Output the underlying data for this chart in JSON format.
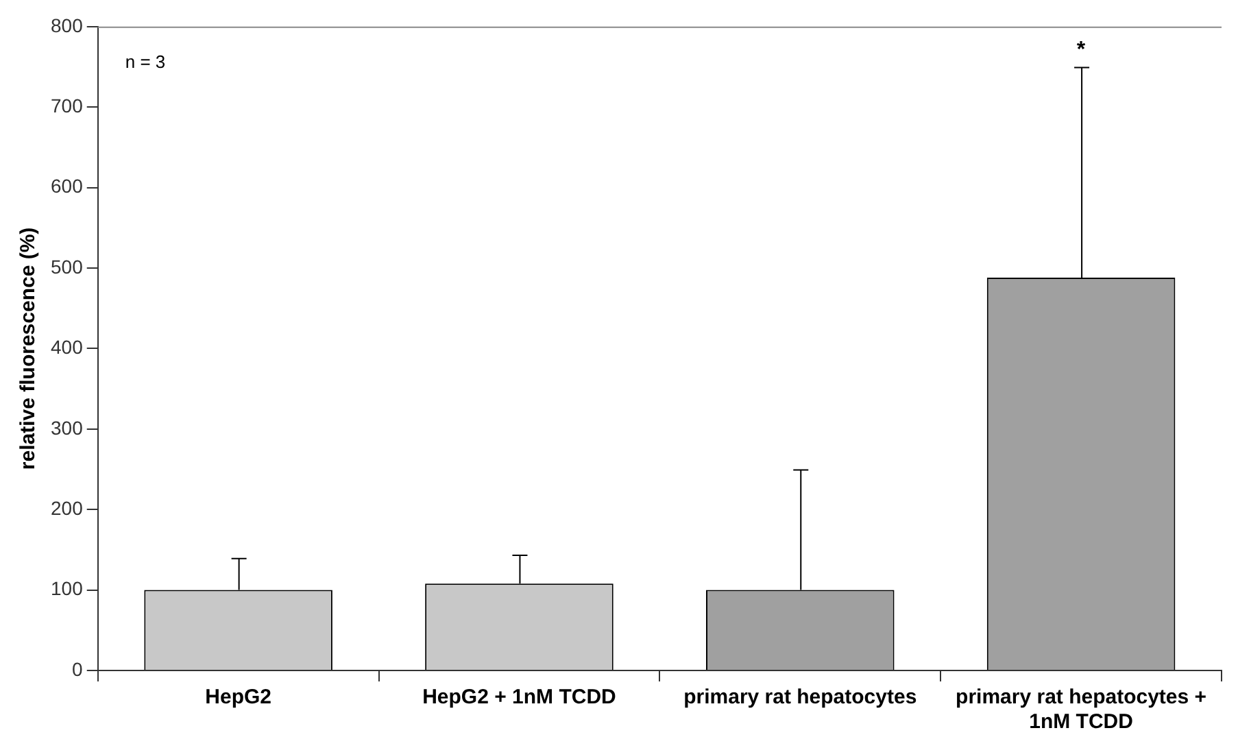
{
  "chart_data": {
    "type": "bar",
    "ylabel": "relative fluorescence (%)",
    "categories": [
      "HepG2",
      "HepG2 + 1nM TCDD",
      "primary rat hepatocytes",
      "primary rat hepatocytes + 1nM TCDD"
    ],
    "values": [
      100,
      108,
      100,
      488
    ],
    "errors": [
      40,
      36,
      150,
      262
    ],
    "colors": [
      "#c8c8c8",
      "#c8c8c8",
      "#a0a0a0",
      "#a0a0a0"
    ],
    "ylim": [
      0,
      800
    ],
    "yticks": [
      0,
      100,
      200,
      300,
      400,
      500,
      600,
      700,
      800
    ],
    "grid": false,
    "legend": false,
    "annotations": [
      "n = 3",
      {
        "text": "*",
        "x": "primary rat hepatocytes + 1nM TCDD",
        "y": 750
      }
    ]
  }
}
